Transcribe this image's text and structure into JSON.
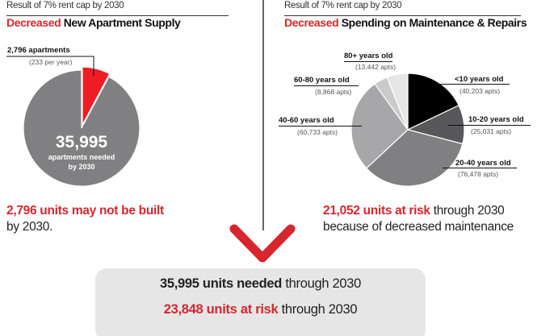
{
  "colors": {
    "accent": "#d7262e",
    "gray_main": "#808083",
    "box_bg": "#e6e6e6"
  },
  "left": {
    "subtitle": "Result of 7% rent cap by 2030",
    "title_red": "Decreased",
    "title_rest": " New Apartment Supply",
    "slice_label": "2,796 apartments",
    "slice_sub": "(233 per year)",
    "center_big": "35,995",
    "center_line1": "apartments needed",
    "center_line2": "by 2030",
    "summary_red": "2,796 units may not be built",
    "summary_rest": "by 2030."
  },
  "right": {
    "subtitle": "Result of 7% rent cap by 2030",
    "title_red": "Decreased",
    "title_rest": " Spending on Maintenance & Repairs",
    "summary_red": "21,052 units at risk",
    "summary_rest1": " through 2030",
    "summary_rest2": "because of decreased maintenance"
  },
  "bottom": {
    "line1_bold": "35,995 units needed",
    "line1_rest": " through 2030",
    "line2_red": "23,848 units at risk",
    "line2_rest": " through 2030"
  },
  "chart_data": [
    {
      "type": "pie",
      "title": "Decreased New Apartment Supply",
      "slices": [
        {
          "label": "2,796 apartments",
          "value": 2796,
          "color": "#ee1c25"
        },
        {
          "label": "35,995 apartments needed by 2030",
          "value": 33199,
          "color": "#808083"
        }
      ]
    },
    {
      "type": "pie",
      "title": "Decreased Spending on Maintenance & Repairs",
      "slices": [
        {
          "label": "<10 years old",
          "sub": "(40,203 apts)",
          "value": 40203,
          "color": "#000000"
        },
        {
          "label": "10-20 years old",
          "sub": "(25,031 apts)",
          "value": 25031,
          "color": "#58585a"
        },
        {
          "label": "20-40 years old",
          "sub": "(76,478 apts)",
          "value": 76478,
          "color": "#808083"
        },
        {
          "label": "40-60 years old",
          "sub": "(60,733 apts)",
          "value": 60733,
          "color": "#a7a7a9"
        },
        {
          "label": "60-80 years old",
          "sub": "(8,868 apts)",
          "value": 8868,
          "color": "#cacacc"
        },
        {
          "label": "80+ years old",
          "sub": "(13,442 apts)",
          "value": 13442,
          "color": "#e6e6e7"
        }
      ]
    }
  ]
}
